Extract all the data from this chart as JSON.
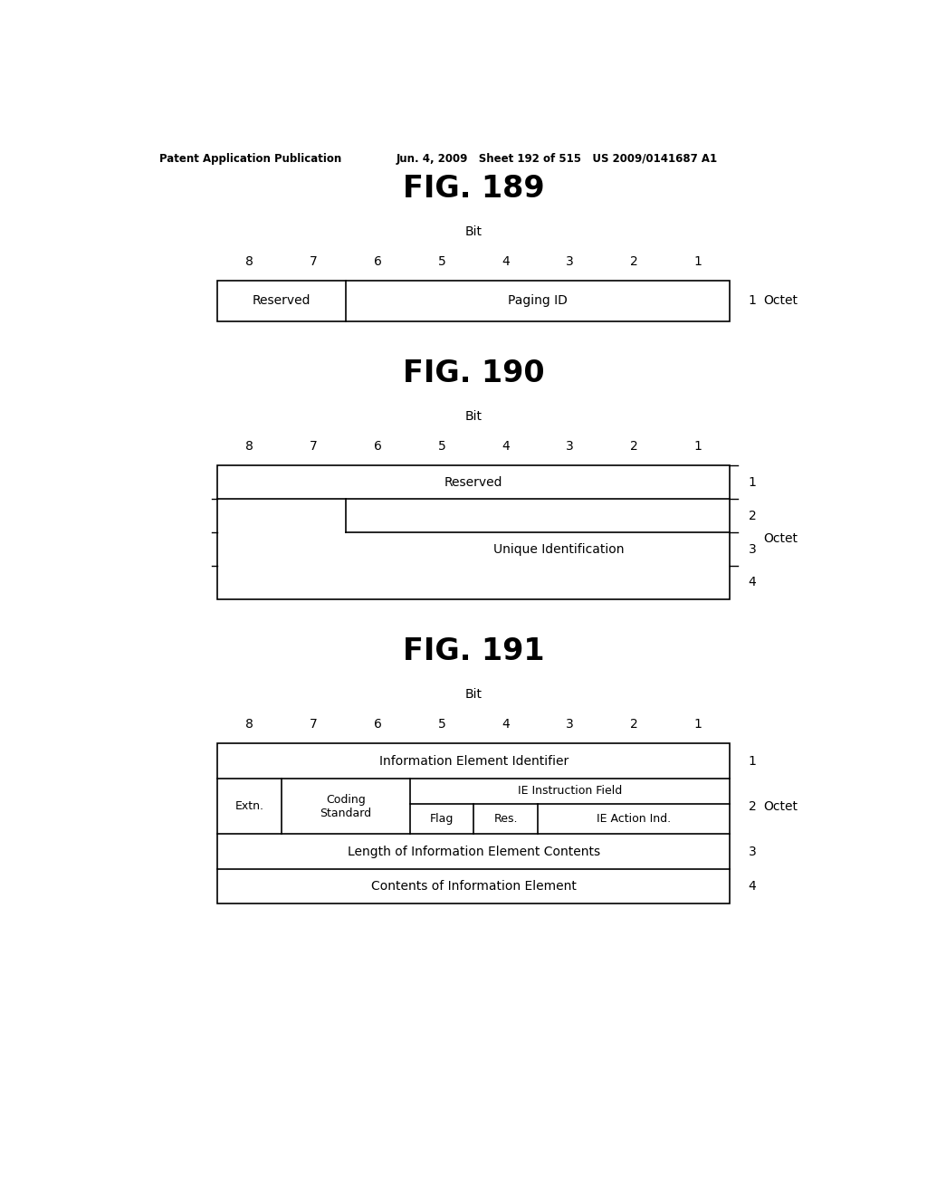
{
  "bg_color": "#ffffff",
  "header_left": "Patent Application Publication",
  "header_right": "Jun. 4, 2009   Sheet 192 of 515   US 2009/0141687 A1",
  "fig189_title": "FIG. 189",
  "fig190_title": "FIG. 190",
  "fig191_title": "FIG. 191",
  "bit_label": "Bit",
  "bit_numbers": [
    "8",
    "7",
    "6",
    "5",
    "4",
    "3",
    "2",
    "1"
  ],
  "octet_label": "Octet"
}
